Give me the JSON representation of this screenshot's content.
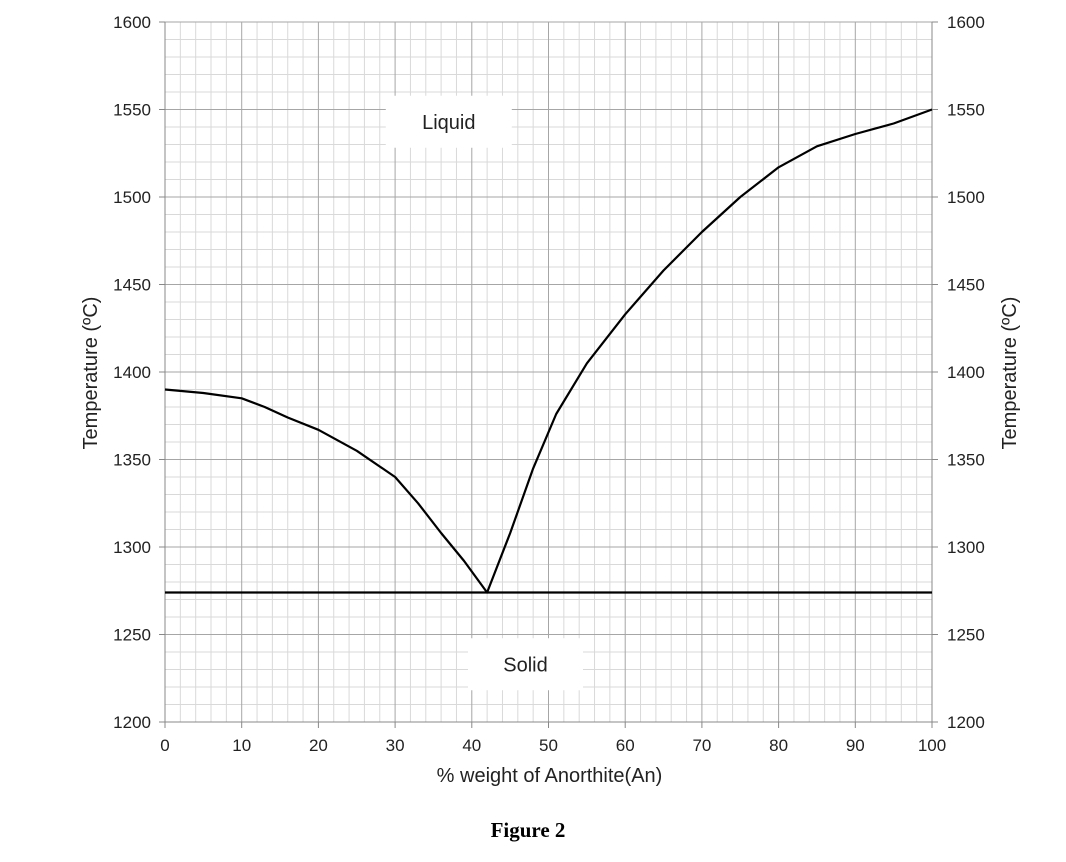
{
  "chart_data": {
    "type": "line",
    "xlabel": "% weight of Anorthite(An)",
    "ylabel": "Temperature (ºC)",
    "ylabel_right": "Temperature (ºC)",
    "xlim": [
      0,
      100
    ],
    "ylim": [
      1200,
      1600
    ],
    "xticks": [
      0,
      10,
      20,
      30,
      40,
      50,
      60,
      70,
      80,
      90,
      100
    ],
    "yticks": [
      1200,
      1250,
      1300,
      1350,
      1400,
      1450,
      1500,
      1550,
      1600
    ],
    "grid": true,
    "minor_grid_x_step": 2,
    "minor_grid_y_step": 10,
    "annotations": [
      {
        "text": "Liquid",
        "x": 37,
        "y": 1543
      },
      {
        "text": "Solid",
        "x": 47,
        "y": 1233
      }
    ],
    "series": [
      {
        "values_x": [
          0,
          5,
          10,
          13,
          16,
          20,
          25,
          30,
          33,
          36,
          39,
          42,
          45,
          48,
          51,
          55,
          60,
          65,
          70,
          75,
          80,
          85,
          90,
          95,
          100
        ],
        "values_y": [
          1390,
          1388,
          1385,
          1380,
          1374,
          1367,
          1355,
          1340,
          1325,
          1308,
          1292,
          1274,
          1308,
          1345,
          1376,
          1405,
          1433,
          1458,
          1480,
          1500,
          1517,
          1529,
          1536,
          1542,
          1550
        ]
      },
      {
        "values_x": [
          0,
          100
        ],
        "values_y": [
          1274,
          1274
        ]
      }
    ],
    "colors": {
      "line": "#000000",
      "major_grid": "#a6a6a6",
      "minor_grid": "#d9d9d9"
    }
  },
  "caption": "Figure 2"
}
